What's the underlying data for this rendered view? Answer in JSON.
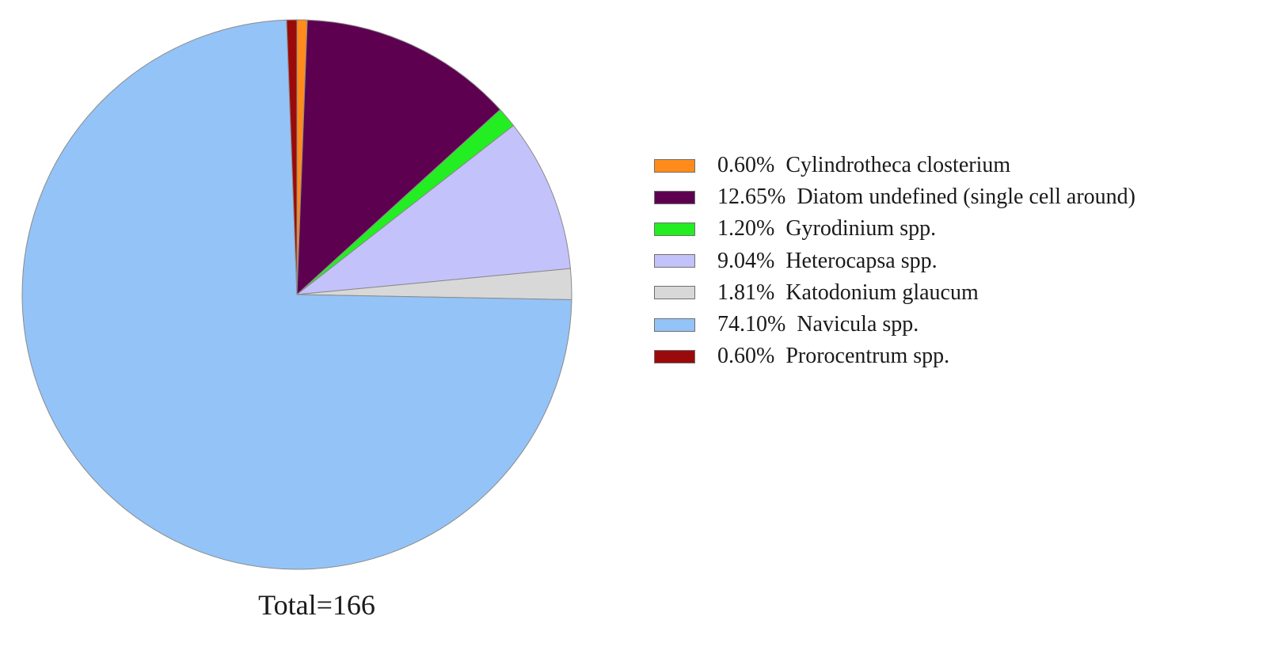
{
  "chart_data": {
    "type": "pie",
    "start_angle_deg": 0,
    "direction": "clockwise",
    "slices": [
      {
        "label": "Cylindrotheca closterium",
        "percent": 0.6,
        "percent_text": "0.60%",
        "color": "#ff8c1a"
      },
      {
        "label": "Diatom undefined (single cell around)",
        "percent": 12.65,
        "percent_text": "12.65%",
        "color": "#5e0050"
      },
      {
        "label": "Gyrodinium spp.",
        "percent": 1.2,
        "percent_text": "1.20%",
        "color": "#22ee22"
      },
      {
        "label": "Heterocapsa spp.",
        "percent": 9.04,
        "percent_text": "9.04%",
        "color": "#c4c2fb"
      },
      {
        "label": "Katodonium glaucum",
        "percent": 1.81,
        "percent_text": "1.81%",
        "color": "#d8d8d8"
      },
      {
        "label": "Navicula spp.",
        "percent": 74.1,
        "percent_text": "74.10%",
        "color": "#94c3f7"
      },
      {
        "label": "Prorocentrum spp.",
        "percent": 0.6,
        "percent_text": "0.60%",
        "color": "#9b0a0a"
      }
    ],
    "annotation": "Total=166",
    "legend_position": "right"
  }
}
